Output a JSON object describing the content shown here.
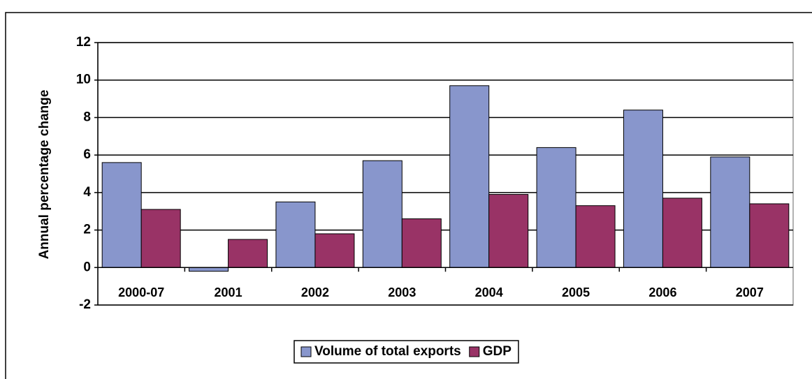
{
  "chart_data": {
    "type": "bar",
    "y_label": "Annual percentage change",
    "categories": [
      "2000-07",
      "2001",
      "2002",
      "2003",
      "2004",
      "2005",
      "2006",
      "2007"
    ],
    "series": [
      {
        "name": "Volume of total exports",
        "color": "#8896cc",
        "values": [
          5.6,
          -0.2,
          3.5,
          5.7,
          9.7,
          6.4,
          8.4,
          5.9
        ]
      },
      {
        "name": "GDP",
        "color": "#993366",
        "values": [
          3.1,
          1.5,
          1.8,
          2.6,
          3.9,
          3.3,
          3.7,
          3.4
        ]
      }
    ],
    "ylim": [
      -2,
      12
    ],
    "yticks": [
      -2,
      0,
      2,
      4,
      6,
      8,
      10,
      12
    ],
    "grid": true,
    "legend": "bottom"
  }
}
